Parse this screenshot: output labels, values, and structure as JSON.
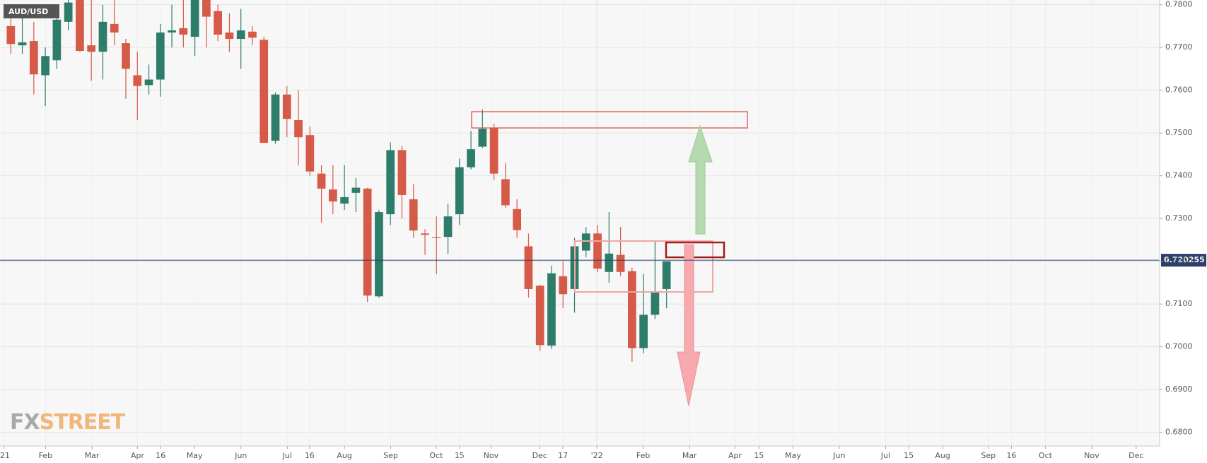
{
  "chart_data": {
    "type": "candlestick",
    "title": "AUD/USD",
    "watermark": {
      "prefix": "FX",
      "suffix": "STREET"
    },
    "up_color": "#2e7d6b",
    "down_color": "#d65a48",
    "x": [
      1,
      2,
      3,
      4,
      5,
      6,
      7,
      8,
      9,
      10,
      11,
      12,
      13,
      14,
      15,
      16,
      17,
      18,
      19,
      20,
      21,
      22,
      23,
      24,
      25,
      26,
      27,
      28,
      29,
      30,
      31,
      32,
      33,
      34,
      35,
      36,
      37,
      38,
      39,
      40,
      41,
      42,
      43,
      44,
      45,
      46,
      47,
      48,
      49,
      50,
      51,
      52,
      53,
      54,
      55,
      56,
      57,
      58
    ],
    "open": [
      0.775,
      0.7705,
      0.7715,
      0.7635,
      0.767,
      0.776,
      0.7815,
      0.7705,
      0.769,
      0.7755,
      0.771,
      0.7635,
      0.7612,
      0.7625,
      0.7735,
      0.7745,
      0.7725,
      0.7815,
      0.7785,
      0.7735,
      0.772,
      0.7737,
      0.7718,
      0.7482,
      0.759,
      0.753,
      0.7495,
      0.7405,
      0.7368,
      0.7335,
      0.736,
      0.737,
      0.7118,
      0.731,
      0.746,
      0.7345,
      0.7265,
      0.7257,
      0.7257,
      0.731,
      0.742,
      0.7468,
      0.7512,
      0.7392,
      0.7322,
      0.7235,
      0.7143,
      0.7003,
      0.7165,
      0.7135,
      0.7225,
      0.7265,
      0.7175,
      0.7215,
      0.7177,
      0.6997,
      0.7075,
      0.7135
    ],
    "high": [
      0.779,
      0.7775,
      0.776,
      0.77,
      0.78,
      0.7815,
      0.782,
      0.7815,
      0.78,
      0.7815,
      0.772,
      0.769,
      0.766,
      0.7755,
      0.78,
      0.7815,
      0.783,
      0.783,
      0.78,
      0.778,
      0.779,
      0.775,
      0.7725,
      0.7595,
      0.761,
      0.76,
      0.7515,
      0.7425,
      0.7425,
      0.7425,
      0.7395,
      0.7372,
      0.732,
      0.7478,
      0.747,
      0.738,
      0.7275,
      0.7305,
      0.7335,
      0.744,
      0.7505,
      0.7555,
      0.7522,
      0.743,
      0.7345,
      0.7265,
      0.7145,
      0.719,
      0.72,
      0.7255,
      0.728,
      0.7285,
      0.7315,
      0.728,
      0.7185,
      0.717,
      0.725,
      0.72
    ],
    "low": [
      0.7685,
      0.7685,
      0.759,
      0.7563,
      0.765,
      0.774,
      0.769,
      0.7622,
      0.7625,
      0.7705,
      0.758,
      0.753,
      0.759,
      0.7585,
      0.77,
      0.77,
      0.768,
      0.77,
      0.7715,
      0.769,
      0.765,
      0.7705,
      0.7477,
      0.7475,
      0.749,
      0.7424,
      0.74,
      0.729,
      0.731,
      0.732,
      0.7315,
      0.7105,
      0.7115,
      0.7285,
      0.73,
      0.7255,
      0.7215,
      0.717,
      0.7217,
      0.7285,
      0.7415,
      0.7465,
      0.739,
      0.7325,
      0.7255,
      0.7115,
      0.699,
      0.6995,
      0.709,
      0.708,
      0.721,
      0.7175,
      0.715,
      0.7165,
      0.6965,
      0.6985,
      0.7065,
      0.709
    ],
    "close": [
      0.7708,
      0.7712,
      0.7637,
      0.768,
      0.7765,
      0.7805,
      0.7692,
      0.769,
      0.776,
      0.7735,
      0.765,
      0.761,
      0.7625,
      0.7735,
      0.774,
      0.773,
      0.782,
      0.7772,
      0.773,
      0.772,
      0.774,
      0.7723,
      0.7477,
      0.759,
      0.7533,
      0.749,
      0.741,
      0.737,
      0.734,
      0.735,
      0.7372,
      0.712,
      0.7315,
      0.746,
      0.7355,
      0.7272,
      0.7262,
      0.7255,
      0.7305,
      0.742,
      0.7462,
      0.751,
      0.7405,
      0.7331,
      0.7273,
      0.7135,
      0.7004,
      0.7172,
      0.7123,
      0.7235,
      0.7265,
      0.7183,
      0.7218,
      0.7175,
      0.6997,
      0.7075,
      0.713,
      0.72
    ],
    "xlim": [
      0.06,
      100.86
    ],
    "ylim": [
      0.6768,
      0.7811
    ],
    "xticks": [
      {
        "value": 0.4,
        "label": "'21"
      },
      {
        "value": 4.02,
        "label": "Feb"
      },
      {
        "value": 8.05,
        "label": "Mar"
      },
      {
        "value": 12.01,
        "label": "Apr"
      },
      {
        "value": 14.02,
        "label": "16"
      },
      {
        "value": 16.97,
        "label": "May"
      },
      {
        "value": 21.0,
        "label": "Jun"
      },
      {
        "value": 25.03,
        "label": "Jul"
      },
      {
        "value": 26.97,
        "label": "16"
      },
      {
        "value": 30.0,
        "label": "Aug"
      },
      {
        "value": 34.02,
        "label": "Sep"
      },
      {
        "value": 37.98,
        "label": "Oct"
      },
      {
        "value": 40.0,
        "label": "15"
      },
      {
        "value": 42.74,
        "label": "Nov"
      },
      {
        "value": 46.97,
        "label": "Dec"
      },
      {
        "value": 48.99,
        "label": "17"
      },
      {
        "value": 51.94,
        "label": "'22"
      },
      {
        "value": 55.97,
        "label": "Feb"
      },
      {
        "value": 60.0,
        "label": "Mar"
      },
      {
        "value": 63.95,
        "label": "Apr"
      },
      {
        "value": 66.03,
        "label": "15"
      },
      {
        "value": 68.99,
        "label": "May"
      },
      {
        "value": 73.01,
        "label": "Jun"
      },
      {
        "value": 77.04,
        "label": "Jul"
      },
      {
        "value": 79.05,
        "label": "15"
      },
      {
        "value": 82.0,
        "label": "Aug"
      },
      {
        "value": 85.97,
        "label": "Sep"
      },
      {
        "value": 87.98,
        "label": "16"
      },
      {
        "value": 90.93,
        "label": "Oct"
      },
      {
        "value": 94.96,
        "label": "Nov"
      },
      {
        "value": 98.82,
        "label": "Dec"
      }
    ],
    "yticks": [
      {
        "value": 0.78,
        "label": "0.7800"
      },
      {
        "value": 0.77,
        "label": "0.7700"
      },
      {
        "value": 0.76,
        "label": "0.7600"
      },
      {
        "value": 0.75,
        "label": "0.7500"
      },
      {
        "value": 0.74,
        "label": "0.7400"
      },
      {
        "value": 0.73,
        "label": "0.7300"
      },
      {
        "value": 0.72,
        "label": "0.7200"
      },
      {
        "value": 0.71,
        "label": "0.7100"
      },
      {
        "value": 0.7,
        "label": "0.7000"
      },
      {
        "value": 0.69,
        "label": "0.6900"
      },
      {
        "value": 0.68,
        "label": "0.6800"
      }
    ],
    "current_price": 0.720255,
    "grid": true
  }
}
